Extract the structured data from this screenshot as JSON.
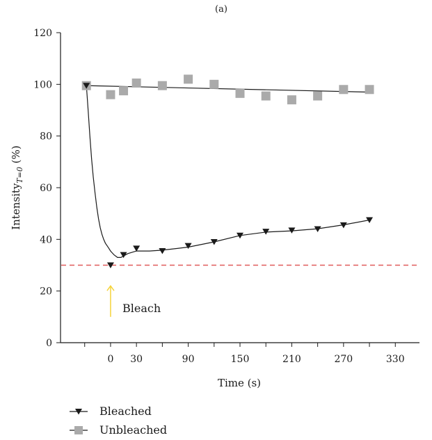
{
  "chart_data": {
    "type": "scatter",
    "panel_label": "(a)",
    "title": "",
    "xlabel": "Time (s)",
    "ylabel": {
      "main": "Intensity",
      "sub": "T=0",
      "suffix": " (%)"
    },
    "x_ticks": [
      -30,
      0,
      30,
      60,
      90,
      120,
      150,
      180,
      210,
      240,
      270,
      300,
      330
    ],
    "x_tick_labels": [
      "",
      "0",
      "30",
      "",
      "90",
      "",
      "150",
      "",
      "210",
      "",
      "270",
      "",
      "330"
    ],
    "y_ticks": [
      0,
      20,
      40,
      60,
      80,
      100,
      120
    ],
    "xlim": [
      -58,
      358
    ],
    "ylim": [
      0,
      120
    ],
    "grid": false,
    "legend_position": "bottom-left",
    "reference_line": {
      "y": 30,
      "color": "#e05a5a",
      "style": "dashed"
    },
    "annotation": {
      "text": "Bleach",
      "x": 0,
      "arrow_y": [
        22,
        10
      ],
      "color": "#f5d33a"
    },
    "series": [
      {
        "name": "Bleached",
        "marker": "triangle-down",
        "color": "#1a1a1a",
        "x": [
          -28,
          0,
          15,
          30,
          60,
          90,
          120,
          150,
          180,
          210,
          240,
          270,
          300
        ],
        "y": [
          99.5,
          30,
          34,
          36.5,
          35.5,
          37.5,
          39,
          41.5,
          43,
          43.5,
          44,
          45.5,
          47.5
        ],
        "fit_x": [
          -28,
          -26,
          -24,
          -22,
          -20,
          -18,
          -16,
          -14,
          -12,
          -10,
          -8,
          -6,
          -4,
          -2,
          0,
          4,
          8,
          12,
          20,
          30,
          45,
          60,
          90,
          120,
          150,
          180,
          210,
          240,
          270,
          300
        ],
        "fit_y": [
          99.5,
          90,
          80,
          71,
          64,
          58,
          52.5,
          48,
          44.5,
          42,
          40,
          38.5,
          37.5,
          36.5,
          35.5,
          34,
          33,
          33,
          34.5,
          35.5,
          35.5,
          35.8,
          37,
          39,
          41.5,
          42.8,
          43.3,
          44.1,
          45.6,
          47.5
        ]
      },
      {
        "name": "Unbleached",
        "marker": "square",
        "color": "#aaaaaa",
        "x": [
          -28,
          0,
          15,
          30,
          60,
          90,
          120,
          150,
          180,
          210,
          240,
          270,
          300
        ],
        "y": [
          99.5,
          96,
          97.5,
          100.5,
          99.5,
          102,
          100,
          96.5,
          95.5,
          94,
          95.5,
          98,
          98
        ],
        "fit_x": [
          -28,
          300
        ],
        "fit_y": [
          99.5,
          97
        ]
      }
    ]
  }
}
